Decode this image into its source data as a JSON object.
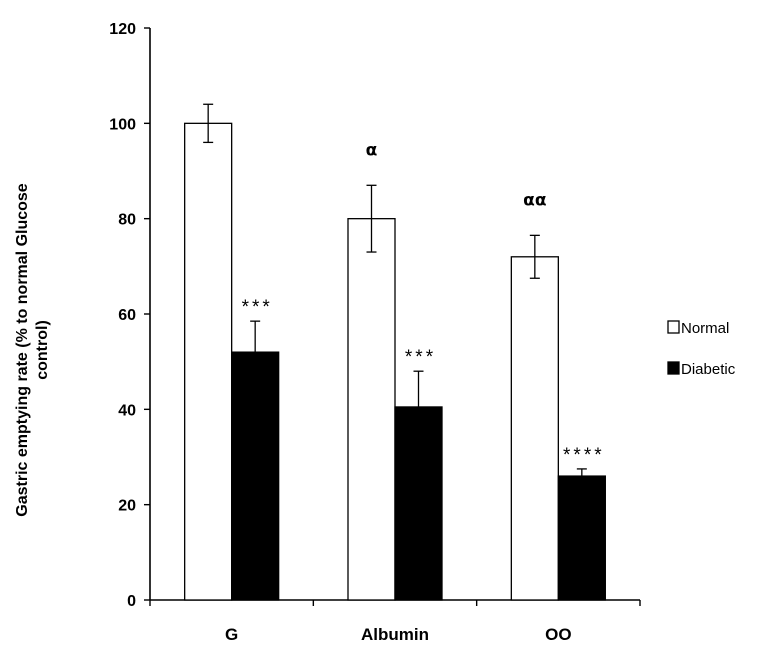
{
  "chart_data": {
    "type": "bar",
    "title": "",
    "xlabel": "",
    "ylabel_lines": [
      "Gastric emptying rate (% to normal Glucose",
      "control)"
    ],
    "ylim": [
      0,
      120
    ],
    "yticks": [
      0,
      20,
      40,
      60,
      80,
      100,
      120
    ],
    "categories": [
      "G",
      "Albumin",
      "OO"
    ],
    "series": [
      {
        "name": "Normal",
        "fill": "#ffffff",
        "values": [
          100,
          80,
          72
        ],
        "errors": [
          4,
          7,
          4.5
        ]
      },
      {
        "name": "Diabetic",
        "fill": "#000000",
        "values": [
          52,
          40.5,
          26
        ],
        "errors": [
          6.5,
          7.5,
          1.5
        ]
      }
    ],
    "annotations": [
      {
        "category": 0,
        "series": "Diabetic",
        "text": "***"
      },
      {
        "category": 1,
        "series": "Diabetic",
        "text": "***"
      },
      {
        "category": 2,
        "series": "Diabetic",
        "text": "****"
      },
      {
        "category": 1,
        "series": "Normal",
        "text": "α"
      },
      {
        "category": 2,
        "series": "Normal",
        "text": "αα"
      }
    ],
    "grid": false,
    "legend_position": "right"
  }
}
